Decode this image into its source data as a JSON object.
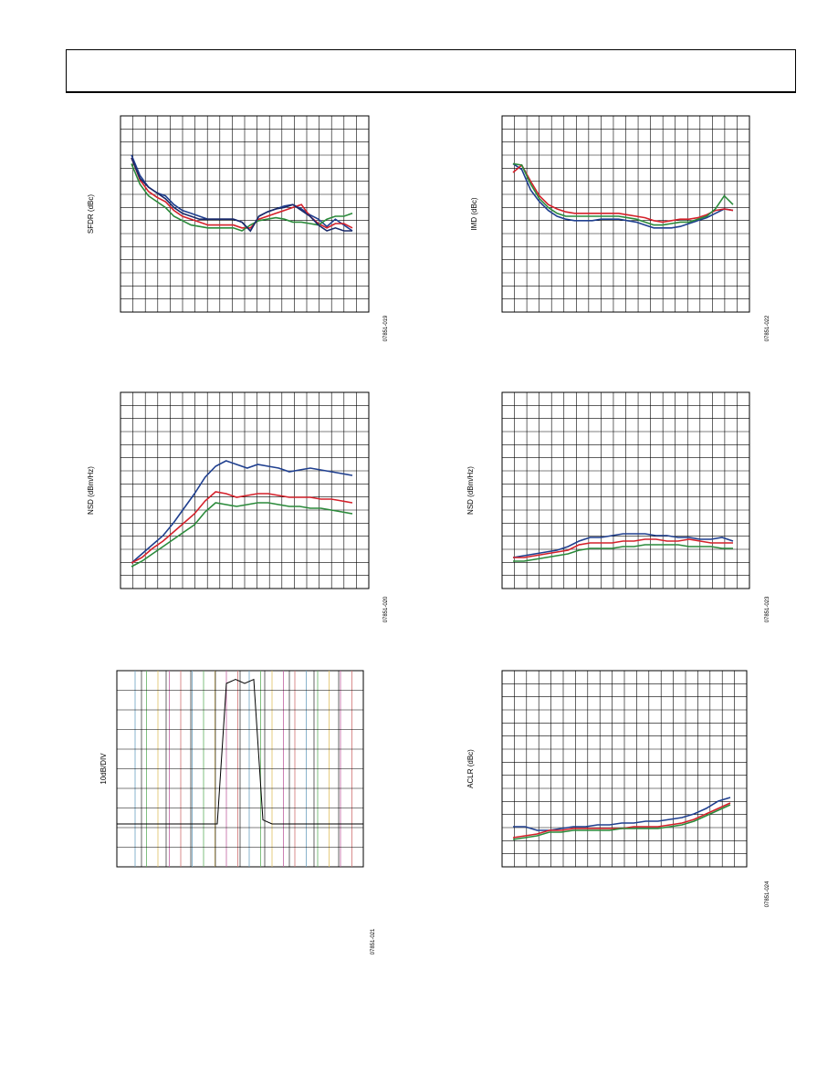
{
  "header": {
    "title": ""
  },
  "colors": {
    "blue": "#1f3f8f",
    "red": "#d4202a",
    "green": "#2a8a3a",
    "navy": "#1a2a6a",
    "grid": "#000000"
  },
  "chart_data": [
    {
      "type": "line",
      "ylabel": "SFDR (dBc)",
      "figure_id": "07851-019",
      "grid": true,
      "series": [
        {
          "color": "blue",
          "values": [
            8,
            22,
            30,
            34,
            36,
            42,
            46,
            48,
            50,
            52,
            52,
            52,
            52,
            54,
            60,
            50,
            47,
            45,
            43,
            42,
            45,
            49,
            52,
            57,
            52,
            56,
            60
          ]
        },
        {
          "color": "red",
          "values": [
            10,
            25,
            33,
            37,
            40,
            46,
            50,
            52,
            54,
            56,
            56,
            56,
            56,
            58,
            58,
            52,
            50,
            48,
            46,
            44,
            42,
            50,
            55,
            58,
            55,
            55,
            58
          ]
        },
        {
          "color": "green",
          "values": [
            14,
            28,
            36,
            40,
            44,
            50,
            53,
            56,
            57,
            58,
            58,
            58,
            58,
            60,
            56,
            53,
            52,
            51,
            52,
            54,
            54,
            55,
            56,
            52,
            50,
            50,
            48
          ]
        },
        {
          "color": "navy",
          "values": [
            10,
            24,
            30,
            34,
            38,
            44,
            48,
            50,
            52,
            52,
            52,
            52,
            52,
            54,
            60,
            50,
            47,
            45,
            44,
            42,
            46,
            50,
            56,
            60,
            58,
            60,
            60
          ]
        }
      ]
    },
    {
      "type": "line",
      "ylabel": "IMD (dBc)",
      "figure_id": "07851-022",
      "grid": true,
      "series": [
        {
          "color": "blue",
          "values": [
            14,
            18,
            32,
            40,
            46,
            50,
            52,
            53,
            53,
            53,
            52,
            52,
            52,
            53,
            54,
            56,
            58,
            58,
            58,
            57,
            55,
            53,
            51,
            48,
            45,
            46
          ]
        },
        {
          "color": "red",
          "values": [
            20,
            15,
            26,
            36,
            42,
            45,
            47,
            48,
            48,
            48,
            48,
            48,
            48,
            49,
            50,
            51,
            53,
            54,
            53,
            52,
            52,
            51,
            49,
            46,
            45,
            46
          ]
        },
        {
          "color": "green",
          "values": [
            14,
            15,
            28,
            38,
            44,
            48,
            50,
            50,
            50,
            50,
            50,
            50,
            50,
            51,
            52,
            54,
            56,
            56,
            55,
            54,
            54,
            52,
            50,
            45,
            36,
            42
          ]
        }
      ]
    },
    {
      "type": "line",
      "ylabel": "NSD (dBm/Hz)",
      "figure_id": "07851-020",
      "grid": true,
      "series": [
        {
          "color": "blue",
          "values": [
            0,
            5,
            10,
            15,
            22,
            30,
            38,
            47,
            53,
            56,
            54,
            52,
            54,
            53,
            52,
            50,
            51,
            52,
            51,
            50,
            49,
            48
          ]
        },
        {
          "color": "red",
          "values": [
            0,
            3,
            8,
            12,
            17,
            22,
            27,
            34,
            39,
            38,
            36,
            37,
            38,
            38,
            37,
            36,
            36,
            36,
            35,
            35,
            34,
            33
          ]
        },
        {
          "color": "green",
          "values": [
            -2,
            1,
            5,
            9,
            13,
            17,
            21,
            28,
            33,
            32,
            31,
            32,
            33,
            33,
            32,
            31,
            31,
            30,
            30,
            29,
            28,
            27
          ]
        }
      ]
    },
    {
      "type": "line",
      "ylabel": "NSD (dBm/Hz)",
      "figure_id": "07851-023",
      "grid": true,
      "series": [
        {
          "color": "blue",
          "values": [
            3,
            4,
            5,
            6,
            7,
            9,
            12,
            14,
            14,
            15,
            16,
            16,
            16,
            15,
            15,
            14,
            14,
            13,
            13,
            14,
            12
          ]
        },
        {
          "color": "red",
          "values": [
            3,
            3,
            4,
            5,
            6,
            7,
            10,
            11,
            11,
            11,
            12,
            12,
            13,
            13,
            12,
            12,
            13,
            12,
            11,
            11,
            11
          ]
        },
        {
          "color": "green",
          "values": [
            1,
            1,
            2,
            3,
            4,
            5,
            7,
            8,
            8,
            8,
            9,
            9,
            10,
            10,
            10,
            10,
            9,
            9,
            9,
            8,
            8
          ]
        }
      ]
    },
    {
      "type": "line",
      "ylabel": "10dB/DIV",
      "figure_id": "07851-021",
      "grid": true,
      "series": [
        {
          "color": "black",
          "values": [
            0,
            0,
            0,
            0,
            0,
            0,
            0,
            0,
            0,
            0,
            0,
            0,
            70,
            72,
            70,
            72,
            2,
            0,
            0,
            0,
            0,
            0,
            0,
            0,
            0,
            0,
            0,
            0
          ]
        }
      ]
    },
    {
      "type": "line",
      "ylabel": "ACLR (dBc)",
      "figure_id": "07851-024",
      "grid": true,
      "series": [
        {
          "color": "blue",
          "values": [
            8,
            8,
            6,
            6,
            7,
            8,
            8,
            9,
            9,
            10,
            10,
            11,
            11,
            12,
            13,
            15,
            18,
            22,
            24
          ]
        },
        {
          "color": "red",
          "values": [
            2,
            3,
            4,
            6,
            6,
            7,
            7,
            7,
            7,
            7,
            8,
            8,
            8,
            9,
            10,
            12,
            15,
            18,
            21
          ]
        },
        {
          "color": "green",
          "values": [
            1,
            2,
            3,
            5,
            5,
            6,
            6,
            6,
            6,
            7,
            7,
            7,
            7,
            8,
            9,
            11,
            14,
            17,
            20
          ]
        }
      ]
    }
  ]
}
